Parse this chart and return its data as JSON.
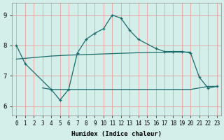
{
  "xlabel": "Humidex (Indice chaleur)",
  "xlim": [
    -0.5,
    23.5
  ],
  "ylim": [
    5.7,
    9.4
  ],
  "xticks": [
    0,
    1,
    2,
    3,
    4,
    5,
    6,
    7,
    8,
    9,
    10,
    11,
    12,
    13,
    14,
    15,
    16,
    17,
    18,
    19,
    20,
    21,
    22,
    23
  ],
  "yticks": [
    6,
    7,
    8,
    9
  ],
  "bg_color": "#d4eeea",
  "line_color": "#1a6b6b",
  "grid_color": "#e8a0a0",
  "line1_x": [
    0,
    1,
    4,
    5,
    6,
    7,
    8,
    9,
    10,
    11,
    12,
    13,
    14,
    16,
    17,
    18,
    19,
    20,
    21,
    22,
    23
  ],
  "line1_y": [
    8.0,
    7.4,
    6.55,
    6.2,
    6.55,
    7.75,
    8.2,
    8.4,
    8.55,
    9.0,
    8.9,
    8.5,
    8.2,
    7.9,
    7.8,
    7.8,
    7.8,
    7.75,
    6.95,
    6.6,
    6.65
  ],
  "line2_x": [
    0,
    2,
    4,
    6,
    8,
    10,
    12,
    14,
    16,
    18,
    20
  ],
  "line2_y": [
    7.55,
    7.6,
    7.65,
    7.68,
    7.7,
    7.72,
    7.74,
    7.76,
    7.77,
    7.78,
    7.78
  ],
  "line3_x": [
    3,
    4,
    5,
    6,
    7,
    8,
    9,
    10,
    11,
    12,
    13,
    14,
    15,
    20,
    21,
    22,
    23
  ],
  "line3_y": [
    6.6,
    6.55,
    6.55,
    6.55,
    6.55,
    6.55,
    6.55,
    6.55,
    6.55,
    6.55,
    6.55,
    6.55,
    6.55,
    6.55,
    6.6,
    6.65,
    6.65
  ]
}
